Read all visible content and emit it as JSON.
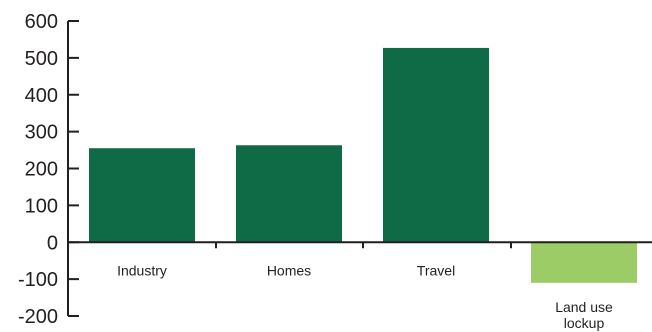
{
  "chart_data": {
    "type": "bar",
    "categories": [
      "Industry",
      "Homes",
      "Travel",
      "Land use lockup"
    ],
    "category_label_lines": [
      [
        "Industry"
      ],
      [
        "Homes"
      ],
      [
        "Travel"
      ],
      [
        "Land use",
        "lockup"
      ]
    ],
    "values": [
      255,
      263,
      527,
      -110
    ],
    "bar_colors": [
      "#0e6b46",
      "#0e6b46",
      "#0e6b46",
      "#9ccc65"
    ],
    "yticks": [
      600,
      500,
      400,
      300,
      200,
      100,
      0,
      -100,
      -200
    ],
    "ylim": [
      -200,
      600
    ],
    "title": "",
    "xlabel": "",
    "ylabel": "",
    "grid": false,
    "legend": false
  }
}
